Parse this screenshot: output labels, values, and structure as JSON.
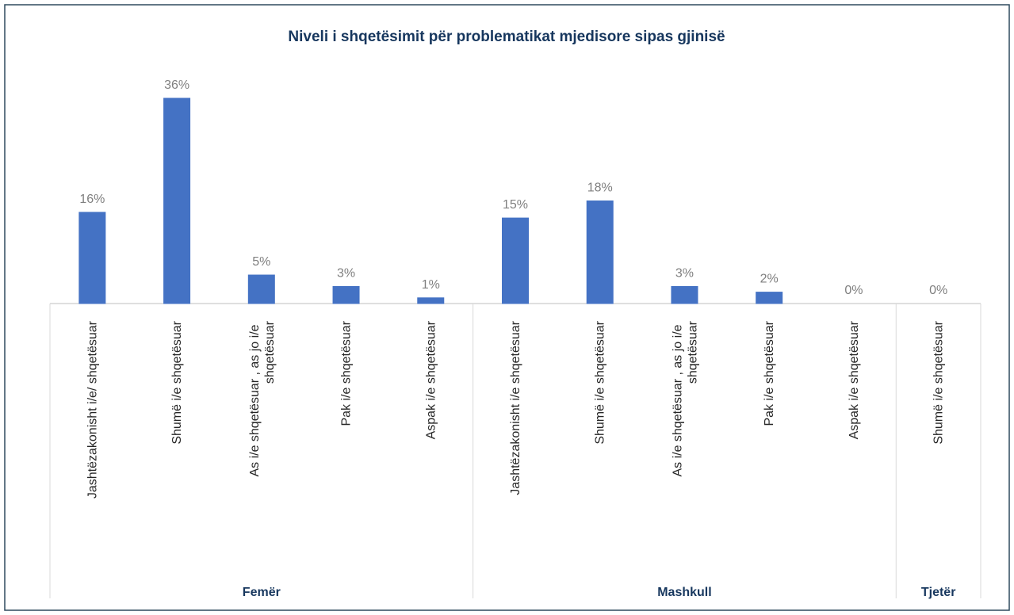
{
  "chart_data": {
    "type": "bar",
    "title": "Niveli i shqetësimit për problematikat mjedisore sipas gjinisë",
    "color": "#4472c4",
    "groups": [
      {
        "name": "Femër",
        "categories": [
          "Jashtëzakonisht i/e/ shqetësuar",
          "Shumë i/e shqetësuar",
          "As i/e shqetësuar , as jo i/e shqetësuar",
          "Pak i/e shqetësuar",
          "Aspak i/e shqetësuar"
        ],
        "values": [
          16,
          36,
          5,
          3,
          1
        ],
        "value_labels": [
          "16%",
          "36%",
          "5%",
          "3%",
          "1%"
        ]
      },
      {
        "name": "Mashkull",
        "categories": [
          "Jashtëzakonisht i/e shqetësuar",
          "Shumë i/e shqetësuar",
          "As i/e shqetësuar , as jo i/e shqetësuar",
          "Pak i/e shqetësuar",
          "Aspak i/e shqetësuar"
        ],
        "values": [
          15,
          18,
          3,
          2,
          0
        ],
        "value_labels": [
          "15%",
          "18%",
          "3%",
          "2%",
          "0%"
        ]
      },
      {
        "name": "Tjetër",
        "categories": [
          "Shumë i/e shqetësuar"
        ],
        "values": [
          0
        ],
        "value_labels": [
          "0%"
        ]
      }
    ]
  }
}
